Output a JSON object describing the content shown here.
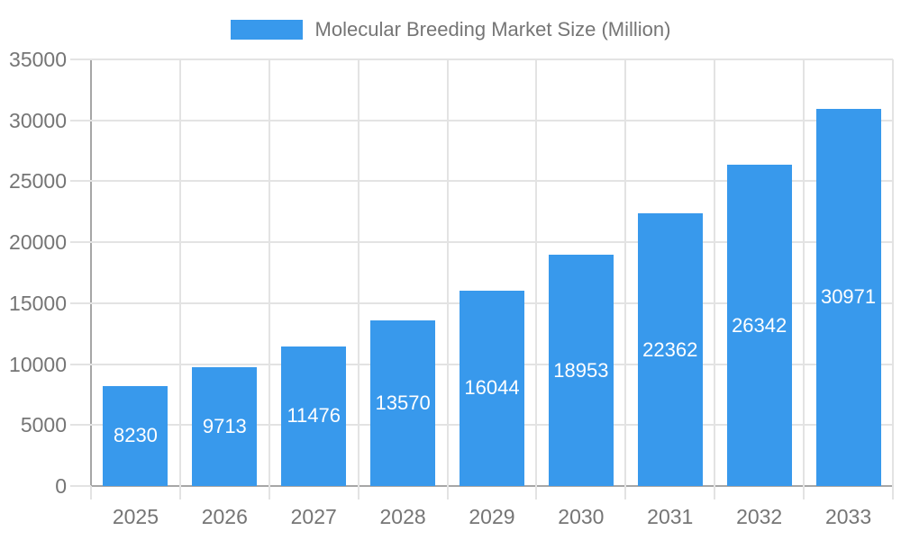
{
  "chart_data": {
    "type": "bar",
    "title": "Molecular Breeding Market Size (Million)",
    "categories": [
      "2025",
      "2026",
      "2027",
      "2028",
      "2029",
      "2030",
      "2031",
      "2032",
      "2033"
    ],
    "values": [
      8230,
      9713,
      11476,
      13570,
      16044,
      18953,
      22362,
      26342,
      30971
    ],
    "xlabel": "",
    "ylabel": "",
    "ylim": [
      0,
      35000
    ],
    "ytick_step": 5000,
    "ytick_labels": [
      "0",
      "5000",
      "10000",
      "15000",
      "20000",
      "25000",
      "30000",
      "35000"
    ],
    "grid": true,
    "legend_position": "top-center",
    "bar_color": "#3899ec",
    "value_label_color": "#ffffff",
    "colors": {
      "axis_line": "#a6a6a6",
      "grid_line": "#e3e3e3",
      "tick_text": "#757575",
      "legend_text": "#757575",
      "background": "#ffffff"
    }
  }
}
